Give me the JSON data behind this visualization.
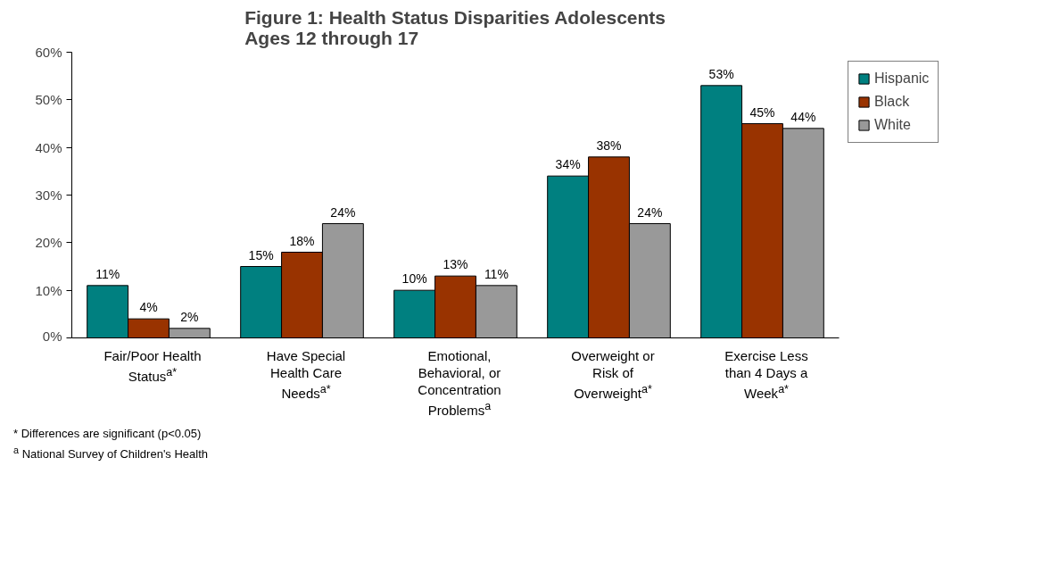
{
  "chart_data": {
    "type": "bar",
    "title": "Figure 1: Health Status Disparities Adolescents\nAges 12 through 17",
    "categories": [
      "Fair/Poor Health\nStatus$^{a*}$",
      "Have Special\nHealth Care\nNeeds$^{a*}$",
      "Emotional,\nBehavioral, or\nConcentration\nProblems$^{a}$",
      "Overweight or\nRisk of\nOverweight$^{a*}$",
      "Exercise Less\nthan 4 Days a\nWeek$^{a*}$"
    ],
    "series": [
      {
        "name": "Hispanic",
        "color": "#008080",
        "values": [
          11,
          15,
          10,
          34,
          53
        ],
        "value_labels": [
          "11%",
          "15%",
          "10%",
          "34%",
          "53%"
        ]
      },
      {
        "name": "Black",
        "color": "#993300",
        "values": [
          4,
          18,
          13,
          38,
          45
        ],
        "value_labels": [
          "4%",
          "18%",
          "13%",
          "38%",
          "45%"
        ]
      },
      {
        "name": "White",
        "color": "#999999",
        "values": [
          2,
          24,
          11,
          24,
          44
        ],
        "value_labels": [
          "2%",
          "24%",
          "11%",
          "24%",
          "44%"
        ]
      }
    ],
    "ylim": [
      0,
      60
    ],
    "yticks": [
      {
        "value": 0,
        "label": "0%"
      },
      {
        "value": 10,
        "label": "10%"
      },
      {
        "value": 20,
        "label": "20%"
      },
      {
        "value": 30,
        "label": "30%"
      },
      {
        "value": 40,
        "label": "40%"
      },
      {
        "value": 50,
        "label": "50%"
      },
      {
        "value": 60,
        "label": "60%"
      }
    ],
    "grid": false,
    "legend": "right",
    "annotations": [
      "* Differences are significant (p<0.05)",
      "$^{a}$ National Survey of Children's Health"
    ]
  }
}
